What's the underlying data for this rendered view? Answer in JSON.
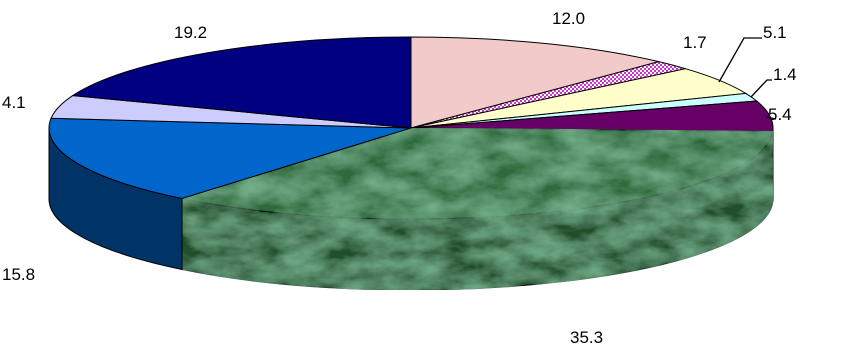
{
  "chart_data": {
    "type": "pie",
    "style": "3d-exploded-none",
    "title": "",
    "legend": "none",
    "slices": [
      {
        "value": 12.0,
        "label": "12.0",
        "color": "#f2caca"
      },
      {
        "value": 1.7,
        "label": "1.7",
        "color": "#cc33cc"
      },
      {
        "value": 5.1,
        "label": "5.1",
        "color": "#ffffcc"
      },
      {
        "value": 1.4,
        "label": "1.4",
        "color": "#ccffff"
      },
      {
        "value": 5.4,
        "label": "5.4",
        "color": "#660066"
      },
      {
        "value": 35.3,
        "label": "35.3",
        "color": "#2e6b3a"
      },
      {
        "value": 15.8,
        "label": "15.8",
        "color": "#0066cc"
      },
      {
        "value": 4.1,
        "label": "4.1",
        "color": "#ccccff"
      },
      {
        "value": 19.2,
        "label": "19.2",
        "color": "#000080"
      }
    ]
  }
}
